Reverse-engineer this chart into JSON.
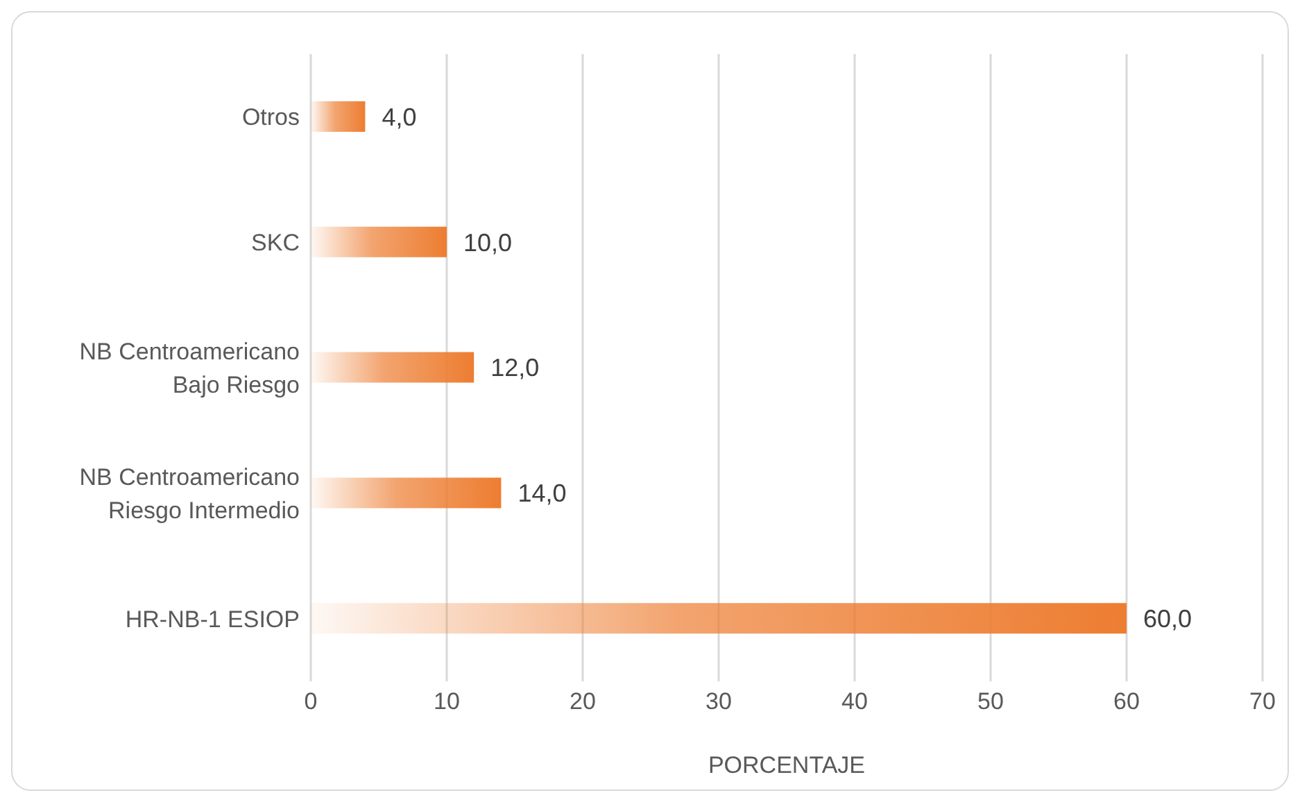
{
  "chart_data": {
    "type": "bar",
    "orientation": "horizontal",
    "xlabel": "PORCENTAJE",
    "categories": [
      "Otros",
      "SKC",
      "NB Centroamericano Bajo Riesgo",
      "NB Centroamericano Riesgo Intermedio",
      "HR-NB-1 ESIOP"
    ],
    "values": [
      4,
      10,
      12,
      14,
      60
    ],
    "value_labels": [
      "4,0",
      "10,0",
      "12,0",
      "14,0",
      "60,0"
    ],
    "color": "#ed7d31",
    "xlim": [
      0,
      70
    ],
    "xticks": [
      0,
      10,
      20,
      30,
      40,
      50,
      60,
      70
    ],
    "grid": "x",
    "legend": false
  }
}
